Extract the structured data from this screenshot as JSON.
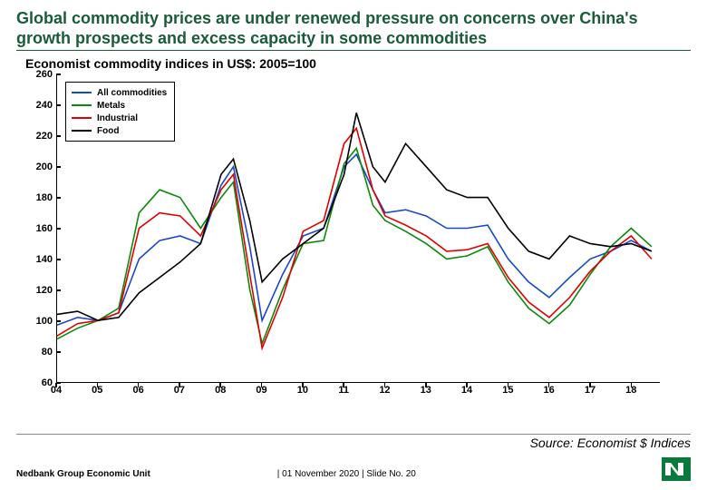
{
  "title": "Global commodity prices are under renewed pressure on concerns over China's growth prospects and excess capacity in some commodities",
  "chart": {
    "type": "line",
    "title": "Economist commodity indices in US$: 2005=100",
    "title_fontsize": 14,
    "background_color": "#ffffff",
    "axis_color": "#000000",
    "line_width": 1.6,
    "ylim": [
      60,
      260
    ],
    "ytick_step": 20,
    "yticks": [
      60,
      80,
      100,
      120,
      140,
      160,
      180,
      200,
      220,
      240,
      260
    ],
    "xlim": [
      2004,
      2018.7
    ],
    "xticks": [
      2004,
      2005,
      2006,
      2007,
      2008,
      2009,
      2010,
      2011,
      2012,
      2013,
      2014,
      2015,
      2016,
      2017,
      2018
    ],
    "xlabels": [
      "04",
      "05",
      "06",
      "07",
      "08",
      "09",
      "10",
      "11",
      "12",
      "13",
      "14",
      "15",
      "16",
      "17",
      "18"
    ],
    "tick_fontsize": 11,
    "legend": {
      "position": "upper-left",
      "border_color": "#000000",
      "bg_color": "#ffffff",
      "fontsize": 10
    },
    "series": [
      {
        "name": "All commodities",
        "color": "#1848c8",
        "x": [
          2004,
          2004.5,
          2005,
          2005.5,
          2006,
          2006.5,
          2007,
          2007.5,
          2008,
          2008.3,
          2008.7,
          2009,
          2009.5,
          2010,
          2010.5,
          2011,
          2011.3,
          2011.7,
          2012,
          2012.5,
          2013,
          2013.5,
          2014,
          2014.5,
          2015,
          2015.5,
          2016,
          2016.5,
          2017,
          2017.5,
          2018,
          2018.5
        ],
        "y": [
          97,
          102,
          100,
          105,
          140,
          152,
          155,
          150,
          188,
          200,
          148,
          100,
          130,
          155,
          160,
          200,
          208,
          185,
          170,
          172,
          168,
          160,
          160,
          162,
          140,
          125,
          115,
          128,
          140,
          145,
          152,
          145
        ]
      },
      {
        "name": "Metals",
        "color": "#0a8a0a",
        "x": [
          2004,
          2004.5,
          2005,
          2005.5,
          2006,
          2006.5,
          2007,
          2007.5,
          2008,
          2008.3,
          2008.7,
          2009,
          2009.5,
          2010,
          2010.5,
          2011,
          2011.3,
          2011.7,
          2012,
          2012.5,
          2013,
          2013.5,
          2014,
          2014.5,
          2015,
          2015.5,
          2016,
          2016.5,
          2017,
          2017.5,
          2018,
          2018.5
        ],
        "y": [
          88,
          95,
          100,
          108,
          170,
          185,
          180,
          160,
          180,
          190,
          120,
          85,
          120,
          150,
          152,
          202,
          212,
          175,
          165,
          158,
          150,
          140,
          142,
          148,
          125,
          108,
          98,
          110,
          130,
          148,
          160,
          148
        ]
      },
      {
        "name": "Industrial",
        "color": "#e00000",
        "x": [
          2004,
          2004.5,
          2005,
          2005.5,
          2006,
          2006.5,
          2007,
          2007.5,
          2008,
          2008.3,
          2008.7,
          2009,
          2009.5,
          2010,
          2010.5,
          2011,
          2011.3,
          2011.7,
          2012,
          2012.5,
          2013,
          2013.5,
          2014,
          2014.5,
          2015,
          2015.5,
          2016,
          2016.5,
          2017,
          2017.5,
          2018,
          2018.5
        ],
        "y": [
          90,
          98,
          100,
          105,
          160,
          170,
          168,
          155,
          185,
          195,
          130,
          82,
          115,
          158,
          165,
          215,
          225,
          185,
          168,
          162,
          155,
          145,
          146,
          150,
          128,
          112,
          102,
          115,
          132,
          145,
          155,
          140
        ]
      },
      {
        "name": "Food",
        "color": "#000000",
        "x": [
          2004,
          2004.5,
          2005,
          2005.5,
          2006,
          2006.5,
          2007,
          2007.5,
          2008,
          2008.3,
          2008.7,
          2009,
          2009.5,
          2010,
          2010.5,
          2011,
          2011.3,
          2011.7,
          2012,
          2012.5,
          2013,
          2013.5,
          2014,
          2014.5,
          2015,
          2015.5,
          2016,
          2016.5,
          2017,
          2017.5,
          2018,
          2018.5
        ],
        "y": [
          104,
          106,
          100,
          102,
          118,
          128,
          138,
          150,
          195,
          205,
          165,
          125,
          140,
          150,
          160,
          195,
          235,
          200,
          190,
          215,
          200,
          185,
          180,
          180,
          160,
          145,
          140,
          155,
          150,
          148,
          150,
          145
        ]
      }
    ]
  },
  "source": "Source: Economist $ Indices",
  "footer": {
    "org": "Nedbank Group Economic Unit",
    "date_slide": "| 01 November 2020  |  Slide No. 20"
  },
  "logo": {
    "bg_color": "#0a7a3c",
    "fg_color": "#ffffff"
  }
}
